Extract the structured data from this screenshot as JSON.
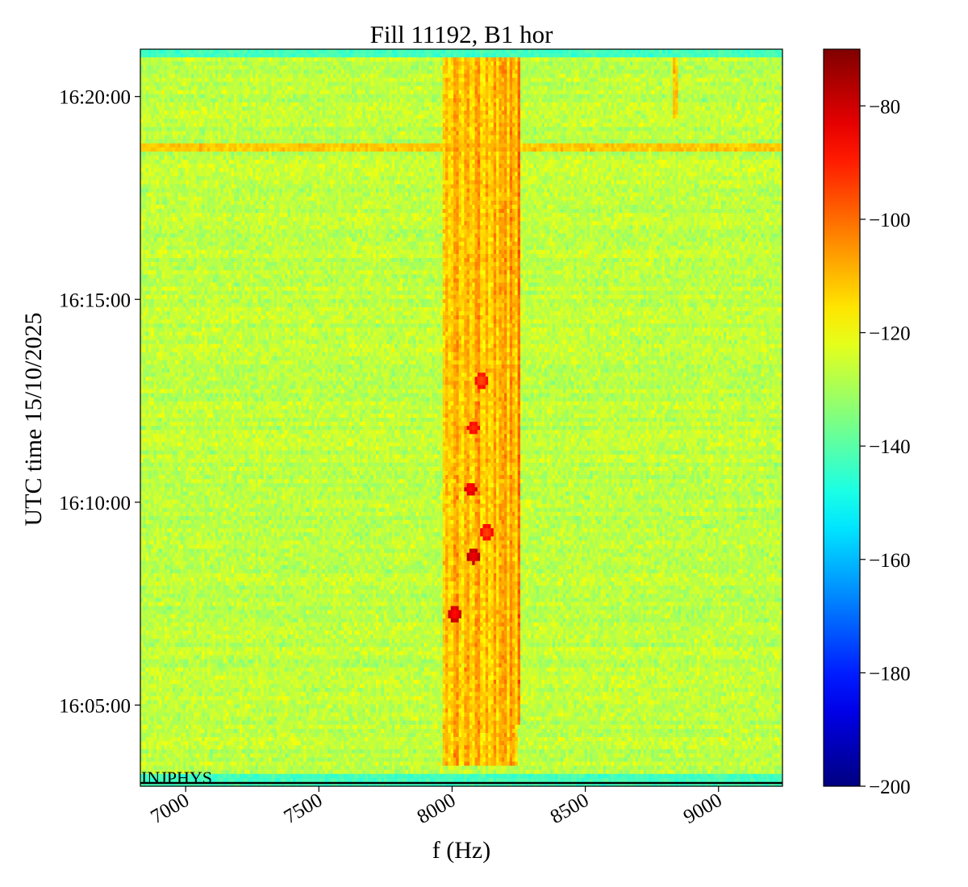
{
  "chart_data": {
    "type": "heatmap",
    "title": "Fill 11192, B1 hor",
    "xlabel": "f (Hz)",
    "ylabel": "UTC time 15/10/2025",
    "xlim": [
      6830,
      9240
    ],
    "x_ticks": [
      7000,
      7500,
      8000,
      8500,
      9000
    ],
    "x_tick_labels": [
      "7000",
      "7500",
      "8000",
      "8500",
      "9000"
    ],
    "y_range": [
      "16:03:00",
      "16:21:10"
    ],
    "y_ticks": [
      "16:05:00",
      "16:10:00",
      "16:15:00",
      "16:20:00"
    ],
    "y_tick_labels": [
      "16:05:00",
      "16:10:00",
      "16:15:00",
      "16:20:00"
    ],
    "colorbar": {
      "range": [
        -200,
        -70
      ],
      "ticks": [
        -200,
        -180,
        -160,
        -140,
        -120,
        -100,
        -80
      ],
      "tick_labels": [
        "−200",
        "−180",
        "−160",
        "−140",
        "−120",
        "−100",
        "−80"
      ],
      "colormap": "jet"
    },
    "annotation": "INJPHYS",
    "background_level": -127,
    "edge_band_level": -143,
    "features": [
      {
        "kind": "vertical_band",
        "f_min": 7960,
        "f_max": 8250,
        "t_start": "16:03:30",
        "t_end": "16:21:00",
        "level": -110
      },
      {
        "kind": "vertical_line",
        "f": 8250,
        "t_start": "16:04:30",
        "t_end": "16:21:00",
        "level": -100
      },
      {
        "kind": "vertical_line",
        "f": 8840,
        "t_start": "16:19:30",
        "t_end": "16:21:00",
        "level": -112
      },
      {
        "kind": "horizontal_line",
        "t": "16:18:45",
        "f_min": 6830,
        "f_max": 9240,
        "level": -112
      },
      {
        "kind": "spot",
        "f": 8010,
        "t": "16:07:15",
        "level": -88
      },
      {
        "kind": "spot",
        "f": 8080,
        "t": "16:08:40",
        "level": -85
      },
      {
        "kind": "spot",
        "f": 8070,
        "t": "16:10:20",
        "level": -88
      },
      {
        "kind": "spot",
        "f": 8130,
        "t": "16:09:15",
        "level": -95
      },
      {
        "kind": "spot",
        "f": 8080,
        "t": "16:11:50",
        "level": -92
      },
      {
        "kind": "spot",
        "f": 8110,
        "t": "16:13:00",
        "level": -96
      }
    ]
  }
}
